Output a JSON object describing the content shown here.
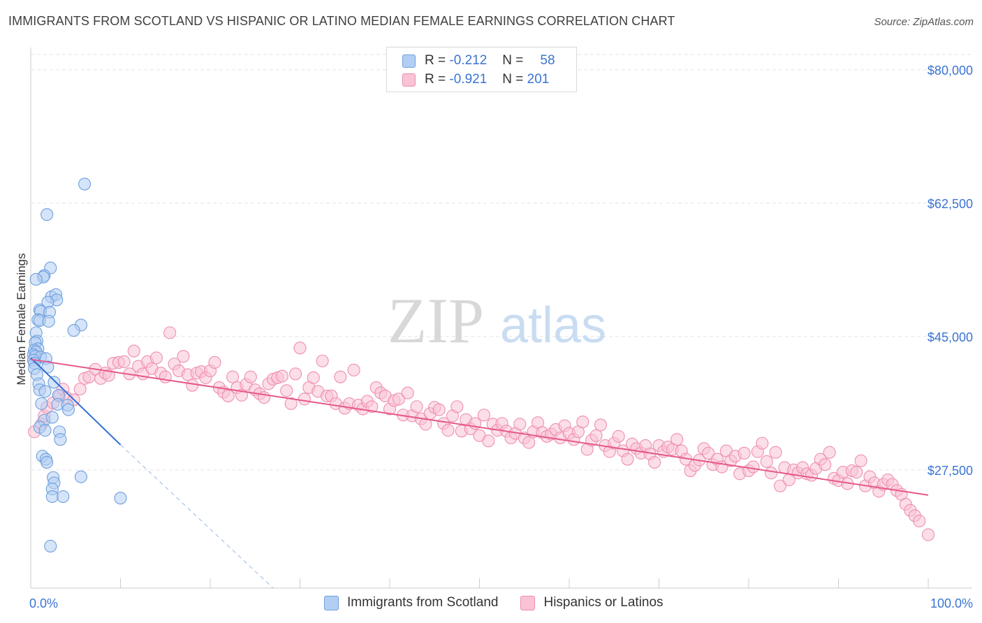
{
  "header": {
    "title": "IMMIGRANTS FROM SCOTLAND VS HISPANIC OR LATINO MEDIAN FEMALE EARNINGS CORRELATION CHART",
    "source": "Source: ZipAtlas.com"
  },
  "watermark": {
    "zip": "ZIP",
    "atlas": "atlas"
  },
  "legend": {
    "rows": [
      {
        "r_label": "R =",
        "r_value": "-0.212",
        "n_label": "N =",
        "n_value": "58",
        "color": "#6f9fde"
      },
      {
        "r_label": "R =",
        "r_value": "-0.921",
        "n_label": "N =",
        "n_value": "201",
        "color": "#ee8fb0"
      }
    ]
  },
  "bottom_legend": {
    "items": [
      "Immigrants from Scotland",
      "Hispanics or Latinos"
    ]
  },
  "chart_data": {
    "type": "scatter",
    "title": "IMMIGRANTS FROM SCOTLAND VS HISPANIC OR LATINO MEDIAN FEMALE EARNINGS CORRELATION CHART",
    "xlabel": "",
    "ylabel": "Median Female Earnings",
    "xlim": [
      0,
      100
    ],
    "ylim": [
      12000,
      82000
    ],
    "x_tick_labels": [
      "0.0%",
      "100.0%"
    ],
    "y_ticks": [
      27500,
      45000,
      62500,
      80000
    ],
    "y_tick_labels": [
      "$27,500",
      "$45,000",
      "$62,500",
      "$80,000"
    ],
    "grid": true,
    "legend_position": "top-center",
    "series": [
      {
        "name": "Immigrants from Scotland",
        "color": "#6f9fde",
        "fill": "#b3cef3",
        "trend": {
          "x": [
            0,
            10
          ],
          "y": [
            42200,
            30800
          ],
          "extends_dashed_to": [
            27,
            12000
          ]
        },
        "points": [
          [
            6,
            65000
          ],
          [
            1.8,
            61000
          ],
          [
            2.2,
            54000
          ],
          [
            1.5,
            53000
          ],
          [
            1.4,
            52800
          ],
          [
            0.6,
            52500
          ],
          [
            2.3,
            50200
          ],
          [
            2.8,
            50500
          ],
          [
            2.9,
            49800
          ],
          [
            1.9,
            49500
          ],
          [
            1.0,
            48500
          ],
          [
            1.1,
            48300
          ],
          [
            2.1,
            48200
          ],
          [
            0.8,
            47200
          ],
          [
            1.0,
            47100
          ],
          [
            2.0,
            47000
          ],
          [
            5.6,
            46500
          ],
          [
            4.8,
            45800
          ],
          [
            0.6,
            45500
          ],
          [
            0.7,
            44400
          ],
          [
            0.5,
            44200
          ],
          [
            0.8,
            43400
          ],
          [
            0.4,
            43200
          ],
          [
            0.6,
            43000
          ],
          [
            0.3,
            42600
          ],
          [
            0.5,
            42400
          ],
          [
            1.1,
            42300
          ],
          [
            1.7,
            42100
          ],
          [
            0.3,
            41900
          ],
          [
            0.4,
            41500
          ],
          [
            1.9,
            41000
          ],
          [
            0.4,
            40800
          ],
          [
            0.7,
            40000
          ],
          [
            2.6,
            39000
          ],
          [
            0.9,
            38800
          ],
          [
            1.0,
            38000
          ],
          [
            1.6,
            37800
          ],
          [
            3.1,
            37300
          ],
          [
            1.2,
            36200
          ],
          [
            3.0,
            36100
          ],
          [
            4.1,
            36000
          ],
          [
            4.2,
            35400
          ],
          [
            1.5,
            34000
          ],
          [
            2.4,
            34400
          ],
          [
            1.0,
            33100
          ],
          [
            1.6,
            32700
          ],
          [
            3.2,
            32500
          ],
          [
            3.3,
            31500
          ],
          [
            1.3,
            29300
          ],
          [
            1.7,
            28900
          ],
          [
            1.8,
            28500
          ],
          [
            2.5,
            26500
          ],
          [
            5.6,
            26600
          ],
          [
            2.6,
            25800
          ],
          [
            2.4,
            25000
          ],
          [
            2.4,
            24000
          ],
          [
            3.6,
            24000
          ],
          [
            10,
            23800
          ],
          [
            2.2,
            17500
          ]
        ]
      },
      {
        "name": "Hispanics or Latinos",
        "color": "#ee8fb0",
        "fill": "#f9c3d4",
        "trend": {
          "x": [
            0,
            100
          ],
          "y": [
            42000,
            24200
          ]
        },
        "points": [
          [
            0.4,
            32500
          ],
          [
            1.2,
            33500
          ],
          [
            1.5,
            34600
          ],
          [
            1.8,
            35700
          ],
          [
            2.5,
            36300
          ],
          [
            3.2,
            37200
          ],
          [
            3.6,
            38100
          ],
          [
            4.0,
            37000
          ],
          [
            4.8,
            36700
          ],
          [
            5.5,
            38100
          ],
          [
            6.0,
            39500
          ],
          [
            6.5,
            39700
          ],
          [
            7.2,
            40700
          ],
          [
            7.8,
            39500
          ],
          [
            8.3,
            40200
          ],
          [
            8.7,
            39900
          ],
          [
            9.2,
            41500
          ],
          [
            9.8,
            41600
          ],
          [
            10.4,
            41700
          ],
          [
            11.0,
            40100
          ],
          [
            11.5,
            43100
          ],
          [
            12.0,
            41100
          ],
          [
            12.5,
            40100
          ],
          [
            13.0,
            41700
          ],
          [
            13.5,
            40800
          ],
          [
            14.0,
            42200
          ],
          [
            14.5,
            40200
          ],
          [
            15.0,
            39700
          ],
          [
            15.5,
            45500
          ],
          [
            16.0,
            41400
          ],
          [
            16.5,
            40500
          ],
          [
            17.0,
            42400
          ],
          [
            17.5,
            40000
          ],
          [
            18.0,
            38600
          ],
          [
            18.5,
            40200
          ],
          [
            19.0,
            40400
          ],
          [
            19.5,
            39600
          ],
          [
            20.0,
            40500
          ],
          [
            20.5,
            41600
          ],
          [
            21.0,
            38300
          ],
          [
            21.5,
            37700
          ],
          [
            22.0,
            37200
          ],
          [
            22.5,
            39700
          ],
          [
            23.0,
            38300
          ],
          [
            23.5,
            37300
          ],
          [
            24.0,
            38700
          ],
          [
            24.5,
            39700
          ],
          [
            25.0,
            38000
          ],
          [
            25.5,
            37500
          ],
          [
            26.0,
            37000
          ],
          [
            26.5,
            38800
          ],
          [
            27.0,
            39400
          ],
          [
            27.5,
            39600
          ],
          [
            28.0,
            39800
          ],
          [
            28.5,
            37900
          ],
          [
            29.0,
            36200
          ],
          [
            29.5,
            40100
          ],
          [
            30.0,
            43500
          ],
          [
            30.5,
            36800
          ],
          [
            31.0,
            38300
          ],
          [
            31.5,
            39600
          ],
          [
            32.0,
            37800
          ],
          [
            32.5,
            41800
          ],
          [
            33.0,
            37200
          ],
          [
            33.5,
            37200
          ],
          [
            34.0,
            36200
          ],
          [
            34.5,
            39700
          ],
          [
            35.0,
            35600
          ],
          [
            35.5,
            36200
          ],
          [
            36.0,
            40600
          ],
          [
            36.5,
            36000
          ],
          [
            37.0,
            35500
          ],
          [
            37.5,
            36500
          ],
          [
            38.0,
            35800
          ],
          [
            38.5,
            38300
          ],
          [
            39.0,
            37600
          ],
          [
            39.5,
            37200
          ],
          [
            40.0,
            35500
          ],
          [
            40.5,
            36600
          ],
          [
            41.0,
            36800
          ],
          [
            41.5,
            34700
          ],
          [
            42.0,
            37600
          ],
          [
            42.5,
            34600
          ],
          [
            43.0,
            35800
          ],
          [
            43.5,
            34200
          ],
          [
            44.0,
            33500
          ],
          [
            44.5,
            34900
          ],
          [
            45.0,
            35700
          ],
          [
            45.5,
            35400
          ],
          [
            46.0,
            33600
          ],
          [
            46.5,
            32700
          ],
          [
            47.0,
            34600
          ],
          [
            47.5,
            35800
          ],
          [
            48.0,
            32600
          ],
          [
            48.5,
            34100
          ],
          [
            49.0,
            32900
          ],
          [
            49.5,
            33600
          ],
          [
            50.0,
            32000
          ],
          [
            50.5,
            34700
          ],
          [
            51.0,
            31300
          ],
          [
            51.5,
            33500
          ],
          [
            52.0,
            32700
          ],
          [
            52.5,
            33600
          ],
          [
            53.0,
            32600
          ],
          [
            53.5,
            31700
          ],
          [
            54.0,
            32300
          ],
          [
            54.5,
            33500
          ],
          [
            55.0,
            31700
          ],
          [
            55.5,
            31100
          ],
          [
            56.0,
            32500
          ],
          [
            56.5,
            33700
          ],
          [
            57.0,
            32400
          ],
          [
            57.5,
            31900
          ],
          [
            58.0,
            32200
          ],
          [
            58.5,
            32800
          ],
          [
            59.0,
            31700
          ],
          [
            59.5,
            33300
          ],
          [
            60.0,
            32300
          ],
          [
            60.5,
            31500
          ],
          [
            61.0,
            32500
          ],
          [
            61.5,
            33800
          ],
          [
            62.0,
            30200
          ],
          [
            62.5,
            31400
          ],
          [
            63.0,
            32000
          ],
          [
            63.5,
            33400
          ],
          [
            64.0,
            30700
          ],
          [
            64.5,
            29900
          ],
          [
            65.0,
            31000
          ],
          [
            65.5,
            31900
          ],
          [
            66.0,
            30000
          ],
          [
            66.5,
            28900
          ],
          [
            67.0,
            30900
          ],
          [
            67.5,
            30300
          ],
          [
            68.0,
            29700
          ],
          [
            68.5,
            30700
          ],
          [
            69.0,
            29600
          ],
          [
            69.5,
            28500
          ],
          [
            70.0,
            30700
          ],
          [
            70.5,
            29900
          ],
          [
            71.0,
            30500
          ],
          [
            71.5,
            30200
          ],
          [
            72.0,
            31500
          ],
          [
            72.5,
            30000
          ],
          [
            73.0,
            28900
          ],
          [
            73.5,
            27400
          ],
          [
            74.0,
            28100
          ],
          [
            74.5,
            28800
          ],
          [
            75.0,
            30300
          ],
          [
            75.5,
            29700
          ],
          [
            76.0,
            28200
          ],
          [
            76.5,
            28900
          ],
          [
            77.0,
            27900
          ],
          [
            77.5,
            30000
          ],
          [
            78.0,
            28700
          ],
          [
            78.5,
            29300
          ],
          [
            79.0,
            27000
          ],
          [
            79.5,
            29700
          ],
          [
            80.0,
            27400
          ],
          [
            80.5,
            27900
          ],
          [
            81.0,
            29900
          ],
          [
            81.5,
            31000
          ],
          [
            82.0,
            28600
          ],
          [
            82.5,
            27100
          ],
          [
            83.0,
            29800
          ],
          [
            83.5,
            25400
          ],
          [
            84.0,
            27800
          ],
          [
            84.5,
            26200
          ],
          [
            85.0,
            27500
          ],
          [
            85.5,
            27100
          ],
          [
            86.0,
            27800
          ],
          [
            86.5,
            27000
          ],
          [
            87.0,
            26800
          ],
          [
            87.5,
            27700
          ],
          [
            88.0,
            28900
          ],
          [
            88.5,
            28200
          ],
          [
            89.0,
            29800
          ],
          [
            89.5,
            26400
          ],
          [
            90.0,
            26100
          ],
          [
            90.5,
            27200
          ],
          [
            91.0,
            25700
          ],
          [
            91.5,
            27400
          ],
          [
            92.0,
            27200
          ],
          [
            92.5,
            28700
          ],
          [
            93.0,
            25400
          ],
          [
            93.5,
            26600
          ],
          [
            94.0,
            25800
          ],
          [
            94.5,
            24700
          ],
          [
            95.0,
            25600
          ],
          [
            95.5,
            26200
          ],
          [
            96.0,
            25600
          ],
          [
            96.5,
            24800
          ],
          [
            97.0,
            24300
          ],
          [
            97.5,
            23000
          ],
          [
            98.0,
            22200
          ],
          [
            98.5,
            21500
          ],
          [
            99.0,
            20800
          ],
          [
            100.0,
            19000
          ]
        ]
      }
    ]
  }
}
